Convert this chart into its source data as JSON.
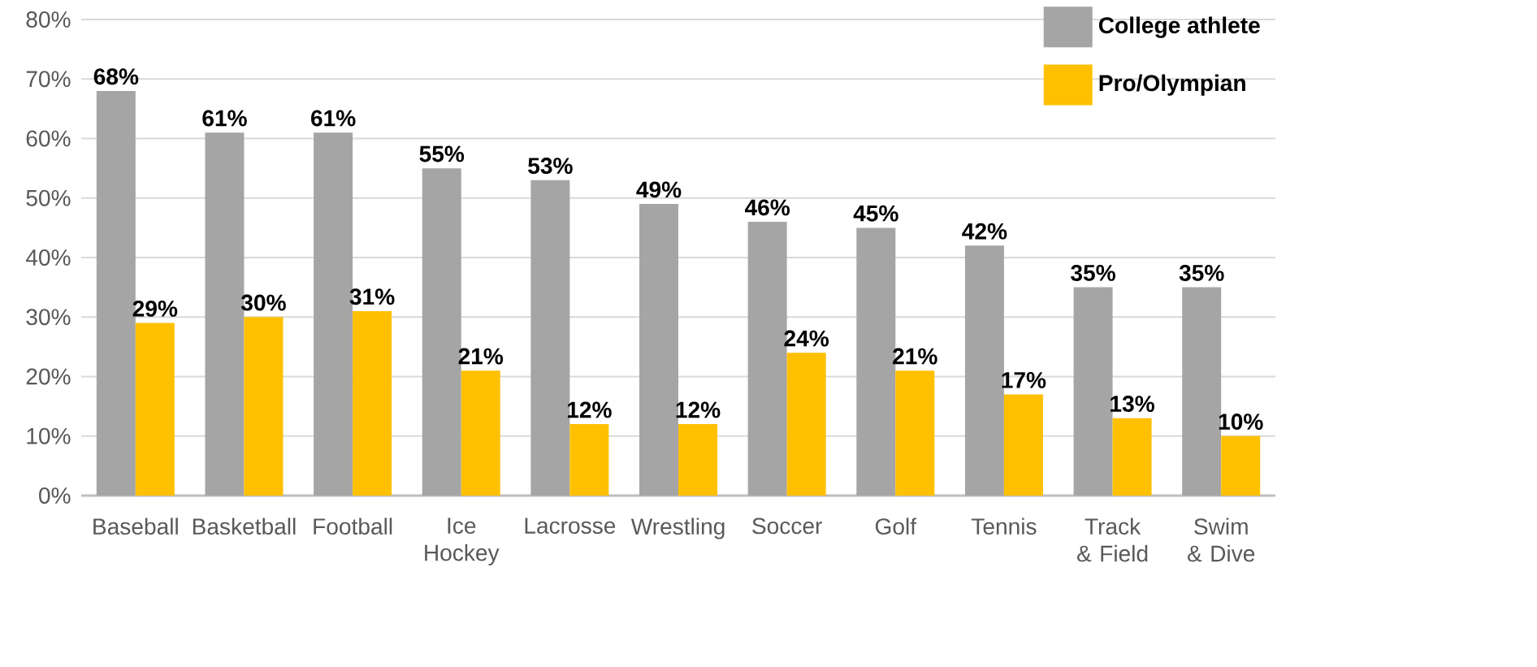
{
  "chart_data": {
    "type": "bar",
    "categories": [
      "Baseball",
      "Basketball",
      "Football",
      "Ice Hockey",
      "Lacrosse",
      "Wrestling",
      "Soccer",
      "Golf",
      "Tennis",
      "Track & Field",
      "Swim & Dive"
    ],
    "series": [
      {
        "name": "College athlete",
        "color": "#a5a5a5",
        "values": [
          68,
          61,
          61,
          55,
          53,
          49,
          46,
          45,
          42,
          35,
          35
        ],
        "value_labels": [
          "68%",
          "61%",
          "61%",
          "55%",
          "53%",
          "49%",
          "46%",
          "45%",
          "42%",
          "35%",
          "35%"
        ]
      },
      {
        "name": "Pro/Olympian",
        "color": "#ffc000",
        "values": [
          29,
          30,
          31,
          21,
          12,
          12,
          24,
          21,
          17,
          13,
          10
        ],
        "value_labels": [
          "29%",
          "30%",
          "31%",
          "21%",
          "12%",
          "12%",
          "24%",
          "21%",
          "17%",
          "13%",
          "10%"
        ]
      }
    ],
    "ylim": [
      0,
      80
    ],
    "yticks": [
      {
        "value": 0,
        "label": "0%"
      },
      {
        "value": 10,
        "label": "10%"
      },
      {
        "value": 20,
        "label": "20%"
      },
      {
        "value": 30,
        "label": "30%"
      },
      {
        "value": 40,
        "label": "40%"
      },
      {
        "value": 50,
        "label": "50%"
      },
      {
        "value": 60,
        "label": "60%"
      },
      {
        "value": 70,
        "label": "70%"
      },
      {
        "value": 80,
        "label": "80%"
      }
    ],
    "grid": "y",
    "legend": "top right"
  }
}
